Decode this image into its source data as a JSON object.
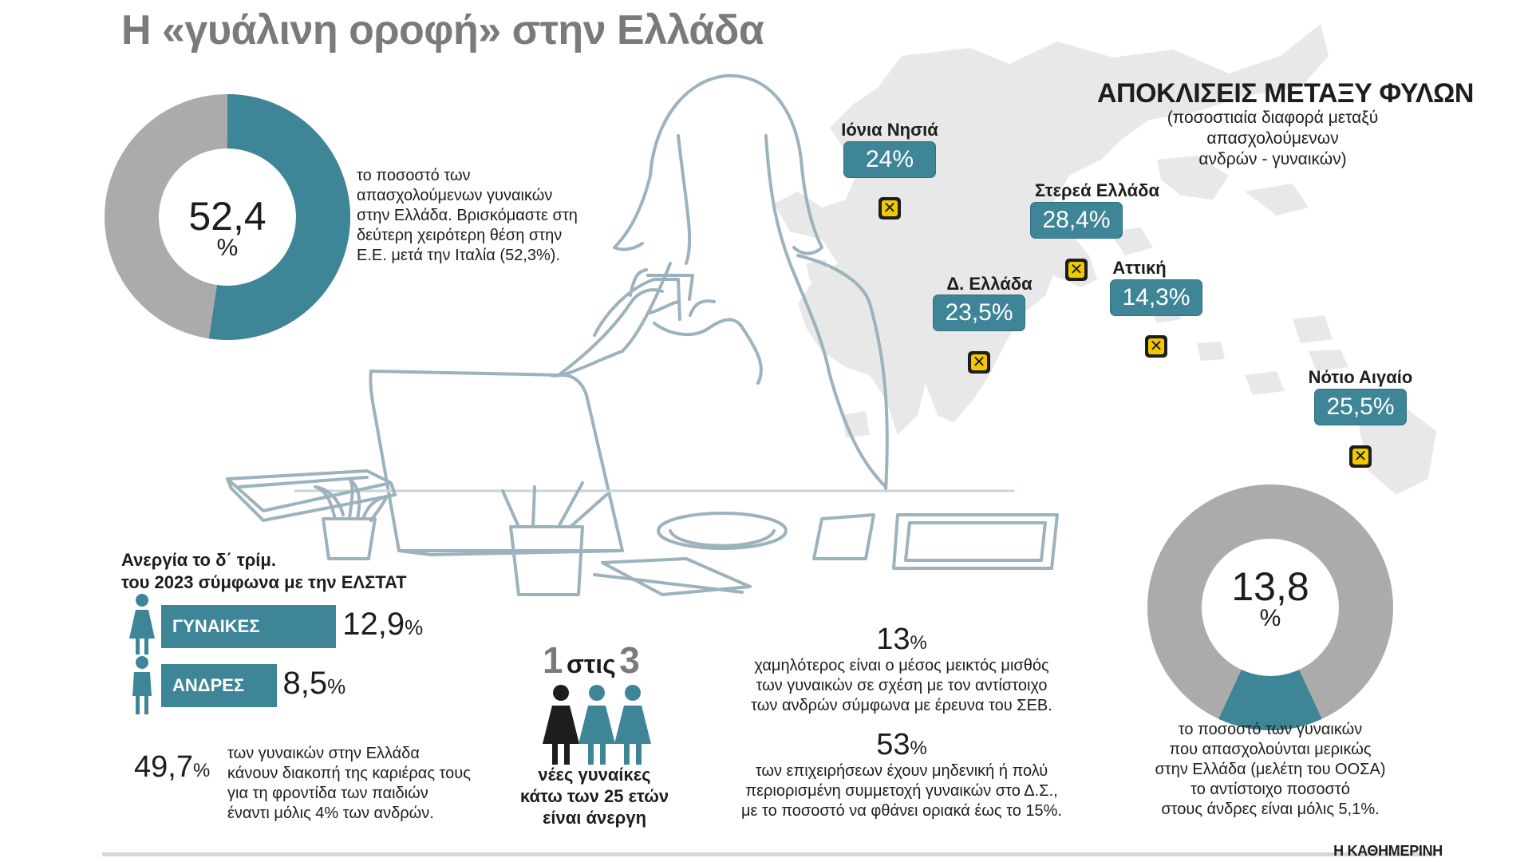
{
  "title": "Η «γυάλινη οροφή» στην Ελλάδα",
  "colors": {
    "teal": "#3d8597",
    "gray": "#ababab",
    "pin": "#f2c800",
    "line": "#9cb2bd",
    "map": "#e8e8e8"
  },
  "employment": {
    "value": "52,4",
    "unit": "%",
    "fraction": 0.524,
    "text": [
      "το ποσοστό των",
      "απασχολούμενων γυναικών",
      "στην Ελλάδα. Βρισκόμαστε στη",
      "δεύτερη χειρότερη θέση στην",
      "Ε.Ε. μετά την Ιταλία (52,3%)."
    ]
  },
  "map": {
    "title": "ΑΠΟΚΛΙΣΕΙΣ ΜΕΤΑΞΥ ΦΥΛΩΝ",
    "subtitle": [
      "(ποσοστιαία διαφορά μεταξύ",
      "απασχολούμενων",
      "ανδρών - γυναικών)"
    ],
    "regions": [
      {
        "name": "Ιόνια Νησιά",
        "value": "24%"
      },
      {
        "name": "Στερεά Ελλάδα",
        "value": "28,4%"
      },
      {
        "name": "Αττική",
        "value": "14,3%"
      },
      {
        "name": "Δ. Ελλάδα",
        "value": "23,5%"
      },
      {
        "name": "Νότιο Αιγαίο",
        "value": "25,5%"
      }
    ]
  },
  "unemployment": {
    "title": [
      "Ανεργία το δ΄ τρίμ.",
      "του 2023 σύμφωνα με την ΕΛΣΤΑΤ"
    ],
    "women": {
      "label": "ΓΥΝΑΙΚΕΣ",
      "value": "12,9",
      "unit": "%"
    },
    "men": {
      "label": "ΑΝΔΡΕΣ",
      "value": "8,5",
      "unit": "%"
    }
  },
  "career_break": {
    "value": "49,7",
    "unit": "%",
    "text": [
      "των γυναικών στην Ελλάδα",
      "κάνουν διακοπή της καριέρας τους",
      "για τη φροντίδα των παιδιών",
      "έναντι μόλις 4% των ανδρών."
    ]
  },
  "young": {
    "num1": "1",
    "word": "στις",
    "num2": "3",
    "text": [
      "νέες γυναίκες",
      "κάτω των 25 ετών",
      "είναι άνεργη"
    ]
  },
  "salary": {
    "value": "13",
    "unit": "%",
    "text": [
      "χαμηλότερος είναι ο μέσος μεικτός μισθός",
      "των γυναικών σε σχέση με τον αντίστοιχο",
      "των ανδρών σύμφωνα με έρευνα του ΣΕΒ."
    ]
  },
  "boards": {
    "value": "53",
    "unit": "%",
    "text": [
      "των επιχειρήσεων έχουν μηδενική ή πολύ",
      "περιορισμένη συμμετοχή γυναικών στο Δ.Σ.,",
      "με το ποσοστό να φθάνει οριακά έως το 15%."
    ]
  },
  "parttime": {
    "value": "13,8",
    "unit": "%",
    "fraction": 0.138,
    "text": [
      "το ποσοστό των γυναικών",
      "που απασχολούνται μερικώς",
      "στην Ελλάδα (μελέτη του ΟΟΣΑ)",
      "το αντίστοιχο ποσοστό",
      "στους άνδρες είναι μόλις 5,1%."
    ]
  },
  "source": "Η ΚΑΘΗΜΕΡΙΝΗ",
  "chart_data": [
    {
      "type": "pie",
      "labels": [
        "Απασχολούμενες γυναίκες"
      ],
      "values": [
        52.4
      ],
      "title": ""
    },
    {
      "type": "bar",
      "categories": [
        "ΓΥΝΑΙΚΕΣ",
        "ΑΝΔΡΕΣ"
      ],
      "values": [
        12.9,
        8.5
      ],
      "title": "Ανεργία το δ΄ τρίμ. του 2023 σύμφωνα με την ΕΛΣΤΑΤ"
    },
    {
      "type": "pie",
      "labels": [
        "Μερική απασχόληση γυναικών"
      ],
      "values": [
        13.8
      ],
      "title": ""
    },
    {
      "type": "table",
      "categories": [
        "Ιόνια Νησιά",
        "Στερεά Ελλάδα",
        "Αττική",
        "Δ. Ελλάδα",
        "Νότιο Αιγαίο"
      ],
      "values": [
        24,
        28.4,
        14.3,
        23.5,
        25.5
      ],
      "title": "ΑΠΟΚΛΙΣΕΙΣ ΜΕΤΑΞΥ ΦΥΛΩΝ"
    }
  ]
}
